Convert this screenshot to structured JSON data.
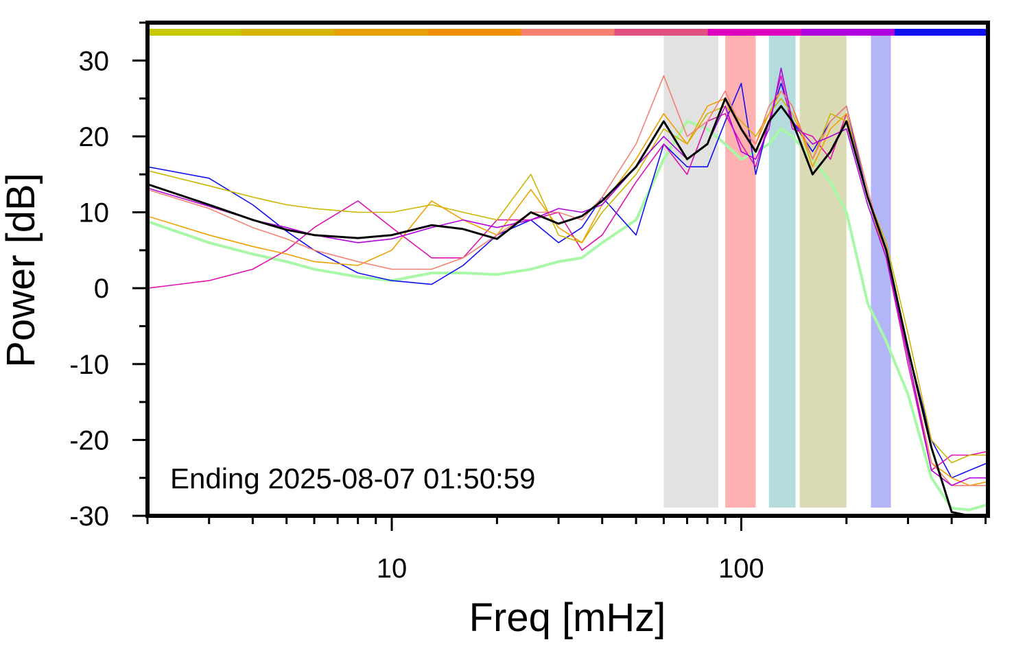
{
  "chart_data": {
    "type": "line",
    "xlabel": "Freq [mHz]",
    "ylabel": "Power [dB]",
    "annotation": "Ending 2025-08-07 01:50:59",
    "xscale": "log",
    "xlim": [
      2,
      508
    ],
    "ylim": [
      -30,
      35
    ],
    "xticks": [
      10,
      100
    ],
    "xticks_minor": [
      2,
      3,
      4,
      5,
      6,
      7,
      8,
      9,
      20,
      30,
      40,
      50,
      60,
      70,
      80,
      90,
      200,
      300,
      400,
      500
    ],
    "yticks": [
      -30,
      -20,
      -10,
      0,
      10,
      20,
      30
    ],
    "yticks_minor": [
      -25,
      -15,
      -5,
      5,
      15,
      25,
      35
    ],
    "top_strip_colors": [
      "#c8c800",
      "#d8b400",
      "#e8a000",
      "#f09000",
      "#f58070",
      "#e05080",
      "#e000c0",
      "#b000e0",
      "#1010f0"
    ],
    "bands": [
      {
        "x0": 60,
        "x1": 86,
        "color": "#e2e2e2"
      },
      {
        "x0": 90,
        "x1": 110,
        "color": "#ffb0b0"
      },
      {
        "x0": 120,
        "x1": 143,
        "color": "#b4dcdc"
      },
      {
        "x0": 147,
        "x1": 200,
        "color": "#dadab4"
      },
      {
        "x0": 235,
        "x1": 268,
        "color": "#b4b4f8"
      }
    ],
    "x": [
      2,
      3,
      4,
      5,
      6,
      8,
      10,
      13,
      16,
      20,
      25,
      30,
      35,
      40,
      50,
      60,
      70,
      80,
      90,
      100,
      110,
      120,
      130,
      140,
      160,
      180,
      200,
      230,
      260,
      300,
      350,
      400,
      450,
      508
    ],
    "series": [
      {
        "color": "#a8f8a8",
        "width": 4,
        "values": [
          8.8,
          6,
          4.5,
          3.5,
          2.5,
          1.5,
          1,
          2,
          2,
          1.8,
          2.5,
          3.5,
          4,
          6,
          9,
          17,
          22,
          21,
          19,
          17,
          18,
          19,
          21,
          20,
          17,
          14,
          10,
          -2,
          -7,
          -14,
          -25,
          -29,
          -29.2,
          -28.5
        ]
      },
      {
        "color": "#1010f0",
        "width": 1.6,
        "values": [
          16,
          14.5,
          11,
          7.5,
          5,
          2,
          1,
          0.5,
          3,
          7,
          9,
          6,
          8,
          12,
          7,
          19,
          16,
          16,
          22,
          27,
          15,
          22,
          27,
          22,
          18,
          22,
          24,
          12,
          5,
          -8,
          -20,
          -25,
          -24,
          -23
        ]
      },
      {
        "color": "#e010b0",
        "width": 1.6,
        "values": [
          0,
          1,
          2.5,
          5,
          8,
          11.5,
          8,
          4,
          4,
          9,
          9,
          10,
          5,
          7,
          14,
          19,
          15,
          22,
          23,
          19,
          16,
          22,
          28,
          21,
          20,
          17,
          23,
          12,
          4,
          -10,
          -24,
          -22,
          -22,
          -21.5
        ]
      },
      {
        "color": "#ccb400",
        "width": 1.6,
        "values": [
          15.5,
          13.5,
          12,
          11,
          10.5,
          10,
          10,
          11,
          10,
          9,
          15,
          7,
          6,
          10,
          15,
          21,
          19,
          23,
          24,
          22,
          20,
          23,
          25,
          23,
          17,
          23,
          22,
          12,
          6,
          -6,
          -20,
          -23,
          -22,
          -22
        ]
      },
      {
        "color": "#f0a000",
        "width": 1.6,
        "values": [
          9.5,
          7,
          5.5,
          4.5,
          3.5,
          3,
          5,
          11.5,
          9,
          7,
          13,
          8,
          6,
          11,
          17,
          23,
          19,
          24,
          25,
          21,
          19,
          23,
          26,
          24,
          16,
          21,
          23,
          12,
          4,
          -9,
          -23,
          -25,
          -26,
          -25.5
        ]
      },
      {
        "color": "#f58070",
        "width": 1.6,
        "values": [
          13,
          10.5,
          8,
          6.5,
          5,
          3.5,
          2.5,
          2.5,
          4,
          7,
          10,
          10,
          9,
          12,
          19,
          28,
          20,
          22,
          26,
          21,
          19,
          24,
          26,
          24,
          17,
          22,
          24,
          13,
          4,
          -9,
          -23,
          -26,
          -26,
          -26
        ]
      },
      {
        "color": "#b000e0",
        "width": 1.6,
        "values": [
          13.2,
          10.8,
          9,
          8,
          7,
          6,
          6.5,
          8,
          9,
          8,
          9,
          10.5,
          10,
          11,
          16,
          20,
          17,
          19,
          24,
          18,
          17,
          21,
          29,
          22,
          19,
          20,
          21,
          11,
          4,
          -9,
          -24,
          -26,
          -25,
          -25
        ]
      },
      {
        "color": "#000000",
        "width": 3,
        "values": [
          13.7,
          11,
          9,
          7.7,
          7,
          6.6,
          7,
          8.3,
          7.8,
          6.5,
          10,
          8.5,
          9.5,
          11.5,
          16,
          22,
          17,
          19,
          25,
          21,
          18,
          22,
          24,
          22,
          15,
          18,
          22,
          12,
          5,
          -8,
          -21,
          -29.5,
          -30,
          -30
        ]
      }
    ]
  }
}
